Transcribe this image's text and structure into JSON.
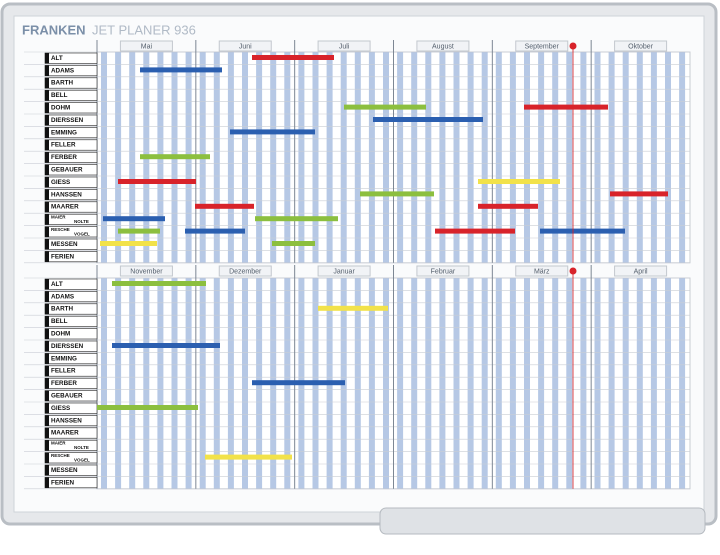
{
  "brand": "FRANKEN",
  "title": "JET PLANER 936",
  "months_top": [
    "Mai",
    "Juni",
    "Juli",
    "August",
    "September",
    "Oktober"
  ],
  "months_bottom": [
    "November",
    "Dezember",
    "Januar",
    "Februar",
    "März",
    "April"
  ],
  "rows": [
    [
      "ALT"
    ],
    [
      "ADAMS"
    ],
    [
      "BARTH"
    ],
    [
      "BELL"
    ],
    [
      "DOHM"
    ],
    [
      "DIERSSEN"
    ],
    [
      "EMMING"
    ],
    [
      "FELLER"
    ],
    [
      "FERBER"
    ],
    [
      "GEBAUER"
    ],
    [
      "GIESS"
    ],
    [
      "HANSSEN"
    ],
    [
      "MAARER"
    ],
    [
      "MAIER",
      "NOLTE"
    ],
    [
      "RESCHE",
      "VOGEL"
    ],
    [
      "MESSEN"
    ],
    [
      "FERIEN"
    ]
  ]
}
